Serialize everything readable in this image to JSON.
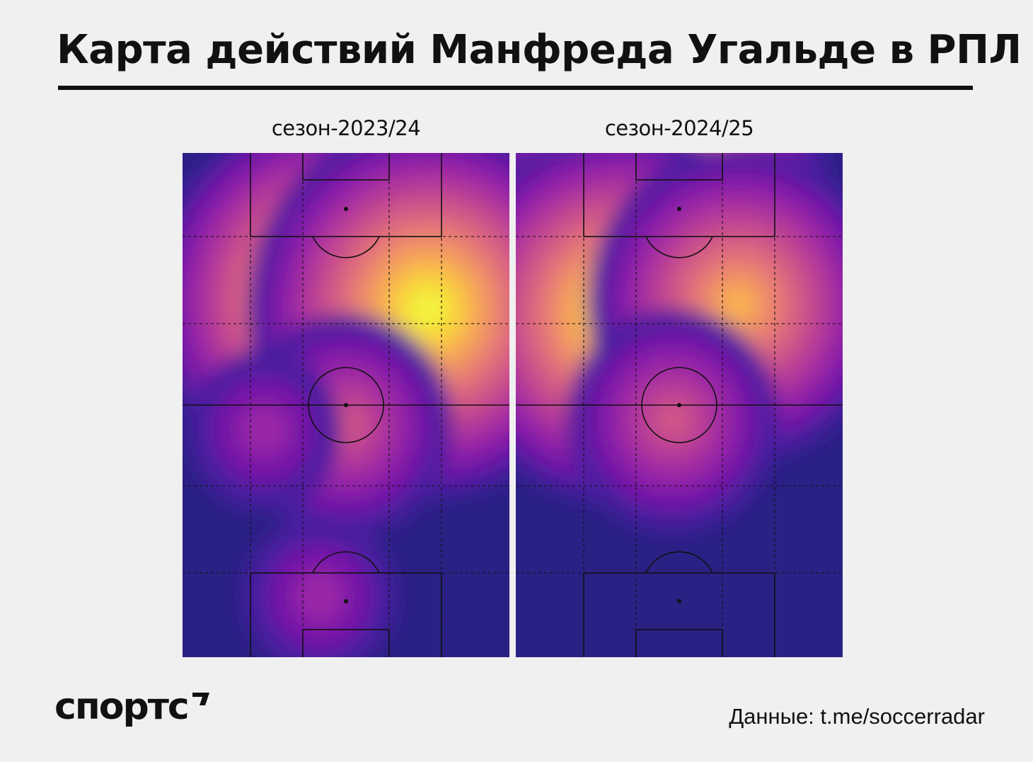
{
  "title": "Карта действий Манфреда Угальде в РПЛ",
  "brand": "спортс",
  "source": "Данные: t.me/soccerradar",
  "colors": {
    "background": "#f0f0f0",
    "text": "#111111",
    "heat_scale": [
      "#2a2185",
      "#4a1fa0",
      "#7718a8",
      "#9a26a6",
      "#b73b97",
      "#cf5488",
      "#e2707a",
      "#ef8f67",
      "#f8b04f",
      "#f9d53a",
      "#f2f53c"
    ]
  },
  "chart_data": [
    {
      "type": "heatmap",
      "title": "сезон-2023/24",
      "xlabel": "",
      "ylabel": "",
      "attack_direction": "top",
      "grid": true,
      "grid_cells": "5 × 6 dashed zones",
      "levels": 11,
      "hotspots": [
        {
          "pitch_x": 0.45,
          "pitch_y": 0.29,
          "level": 10
        },
        {
          "pitch_x": 0.75,
          "pitch_y": 0.31,
          "level": 10
        },
        {
          "pitch_x": 0.5,
          "pitch_y": 0.54,
          "level": 5
        },
        {
          "pitch_x": 0.25,
          "pitch_y": 0.55,
          "level": 3
        },
        {
          "pitch_x": 0.42,
          "pitch_y": 0.88,
          "level": 3
        }
      ]
    },
    {
      "type": "heatmap",
      "title": "сезон-2024/25",
      "xlabel": "",
      "ylabel": "",
      "attack_direction": "top",
      "grid": true,
      "grid_cells": "5 × 6 dashed zones",
      "levels": 11,
      "hotspots": [
        {
          "pitch_x": 0.42,
          "pitch_y": 0.12,
          "level": 10
        },
        {
          "pitch_x": 0.32,
          "pitch_y": 0.32,
          "level": 10
        },
        {
          "pitch_x": 0.68,
          "pitch_y": 0.3,
          "level": 8
        },
        {
          "pitch_x": 0.48,
          "pitch_y": 0.53,
          "level": 5
        }
      ]
    }
  ]
}
